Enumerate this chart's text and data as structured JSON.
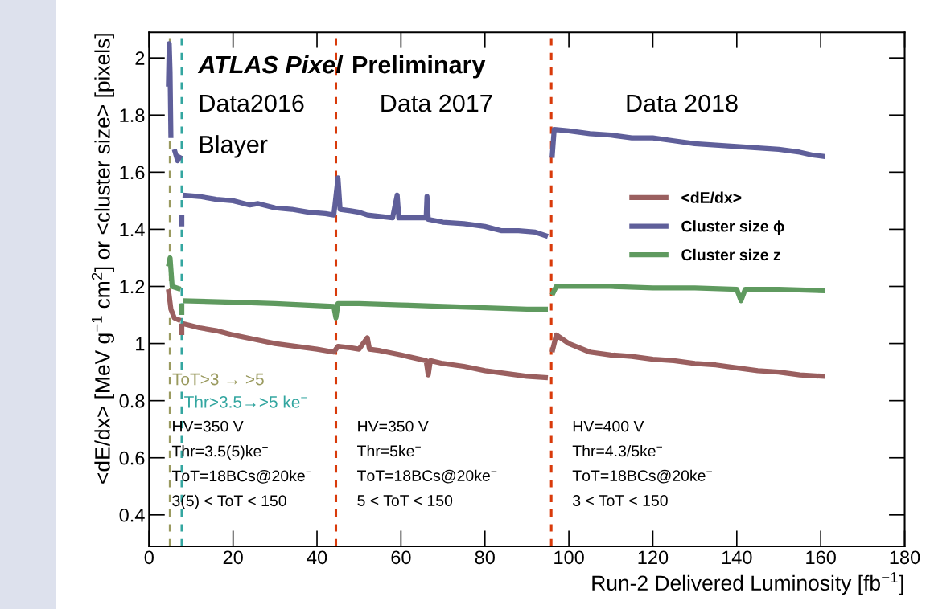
{
  "chart_data": {
    "type": "line",
    "xlabel": "Run-2 Delivered Luminosity [fb$^{−1}$]",
    "ylabel": "<dE/dx> [MeV g$^{−1}$ cm$^{2}$] or <cluster size> [pixels]",
    "xlim": [
      0,
      180
    ],
    "xticks": [
      0,
      20,
      40,
      60,
      80,
      100,
      120,
      140,
      160,
      180
    ],
    "ylim": [
      0.29,
      2.09
    ],
    "yticks": [
      0.4,
      0.6,
      0.8,
      1,
      1.2,
      1.4,
      1.6,
      1.8,
      2
    ],
    "grid": false,
    "legend": "center right",
    "line_style": "solid",
    "marker": "none",
    "series": [
      {
        "name": "<dE/dx>",
        "color": "#9a5f5f",
        "x": [
          4.6,
          5.2,
          6.0,
          7.5,
          7.7,
          7.8,
          7.8,
          7.9,
          8,
          12,
          16,
          20,
          25,
          30,
          35,
          40,
          44,
          44.5,
          45,
          48,
          50,
          52,
          52.5,
          55,
          60,
          66,
          66.5,
          67,
          70,
          75,
          80,
          85,
          90,
          95,
          95.5,
          96,
          97,
          100,
          105,
          110,
          115,
          120,
          125,
          130,
          135,
          140,
          145,
          150,
          155,
          161
        ],
        "values": [
          1.19,
          1.12,
          1.09,
          1.08,
          null,
          1.03,
          1.07,
          null,
          1.07,
          1.055,
          1.045,
          1.03,
          1.015,
          1.0,
          0.99,
          0.98,
          0.97,
          0.98,
          0.99,
          0.985,
          0.98,
          1.02,
          0.98,
          0.975,
          0.96,
          0.94,
          0.89,
          0.94,
          0.93,
          0.92,
          0.905,
          0.895,
          0.885,
          0.88,
          null,
          0.97,
          1.03,
          1.0,
          0.97,
          0.96,
          0.955,
          0.945,
          0.94,
          0.93,
          0.925,
          0.915,
          0.905,
          0.9,
          0.89,
          0.885
        ]
      },
      {
        "name": "Cluster size ϕ",
        "color": "#5f5f9a",
        "x": [
          4.6,
          4.8,
          5.0,
          5.2,
          5.4,
          6.0,
          6.8,
          7.5,
          7.7,
          7.8,
          7.8,
          7.9,
          8,
          12,
          16,
          20,
          24,
          26,
          30,
          34,
          38,
          42,
          44,
          45,
          45.5,
          48,
          50,
          52,
          55,
          58,
          59.1,
          59.5,
          62,
          66,
          66.2,
          66.5,
          70,
          75,
          80,
          84,
          88,
          92,
          95,
          95.5,
          96,
          96.5,
          100,
          105,
          110,
          115,
          120,
          125,
          130,
          135,
          140,
          145,
          150,
          155,
          158,
          161
        ],
        "values": [
          1.9,
          2.05,
          1.95,
          1.72,
          null,
          1.68,
          1.64,
          1.66,
          null,
          1.41,
          1.45,
          null,
          1.52,
          1.515,
          1.505,
          1.5,
          1.485,
          1.49,
          1.475,
          1.47,
          1.46,
          1.455,
          1.45,
          1.58,
          1.47,
          1.465,
          1.46,
          1.45,
          1.445,
          1.44,
          1.52,
          1.44,
          1.44,
          1.44,
          1.515,
          1.435,
          1.425,
          1.42,
          1.41,
          1.395,
          1.395,
          1.39,
          1.375,
          null,
          1.65,
          1.75,
          1.745,
          1.735,
          1.73,
          1.72,
          1.72,
          1.71,
          1.7,
          1.695,
          1.69,
          1.685,
          1.68,
          1.67,
          1.66,
          1.655
        ]
      },
      {
        "name": "Cluster size z",
        "color": "#5f9a5f",
        "x": [
          4.6,
          5.0,
          5.5,
          7.5,
          7.7,
          7.8,
          7.8,
          7.9,
          8,
          20,
          30,
          44,
          44.5,
          45,
          50,
          60,
          70,
          80,
          90,
          95,
          95.5,
          96,
          97,
          110,
          120,
          130,
          140,
          141,
          142,
          150,
          161
        ],
        "values": [
          1.27,
          1.3,
          1.2,
          1.19,
          null,
          1.1,
          1.14,
          null,
          1.15,
          1.145,
          1.14,
          1.13,
          1.09,
          1.14,
          1.14,
          1.135,
          1.13,
          1.125,
          1.12,
          1.12,
          null,
          1.17,
          1.2,
          1.2,
          1.195,
          1.195,
          1.19,
          1.15,
          1.19,
          1.19,
          1.185
        ]
      }
    ],
    "ref_lines": [
      {
        "axis": "x",
        "value": 5,
        "label": "ToT>3 → >5",
        "color": "#9a9a5f",
        "line_style": "dashed"
      },
      {
        "axis": "x",
        "value": 7.8,
        "label": "Thr>3.5→>5 ke$^{−}$",
        "color": "#33a6a0",
        "line_style": "dashed"
      },
      {
        "axis": "x",
        "value": 44.5,
        "color": "#d93a0a",
        "line_style": "dashed"
      },
      {
        "axis": "x",
        "value": 95.8,
        "color": "#d93a0a",
        "line_style": "dashed"
      }
    ],
    "annotations": [
      "ATLAS Pixel",
      "Preliminary",
      "Data2016",
      "Blayer",
      "Data 2017",
      "Data 2018",
      "HV=350 V\nThr=3.5(5)ke$^{−}$\nToT=18BCs@20ke$^{−}$\n3(5) < ToT < 150",
      "HV=350 V\nThr=5ke$^{−}$\nToT=18BCs@20ke$^{−}$\n5 < ToT < 150",
      "HV=400 V\nThr=4.3/5ke$^{−}$\nToT=18BCs@20ke$^{−}$\n3 < ToT < 150"
    ]
  }
}
